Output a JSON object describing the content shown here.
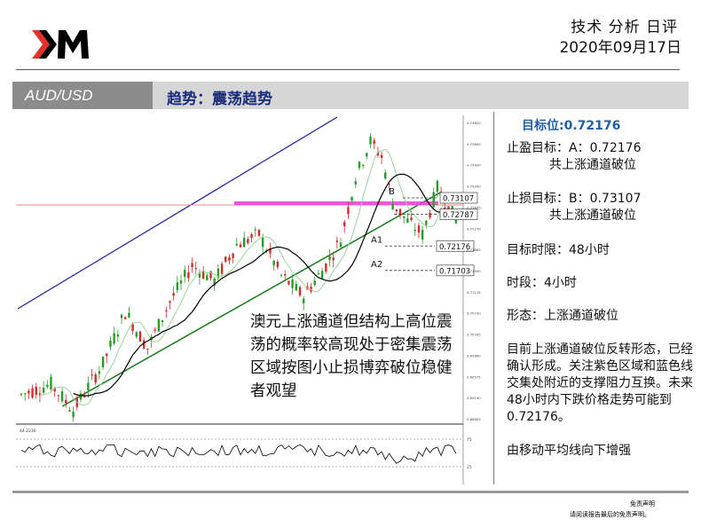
{
  "header": {
    "title": "技术 分析 日评",
    "date": "2020年09月17日",
    "brand_color": "#e4322b"
  },
  "band": {
    "pair": "AUD/USD",
    "trend_label": "趋势：震荡趋势"
  },
  "chart_data": {
    "type": "candlestick",
    "title": "",
    "xlabel": "",
    "ylabel": "",
    "ylim": [
      0.688,
      0.746
    ],
    "price_tick_labels": [
      "0.74620",
      "0.73805",
      "0.73420",
      "0.73040",
      "0.72655",
      "0.72270",
      "0.71885",
      "0.71500",
      "0.71115",
      "0.70730",
      "0.70345",
      "0.69960",
      "0.69575",
      "0.69190",
      "0.68805"
    ],
    "levels": [
      {
        "name": "B",
        "value": 0.73107
      },
      {
        "name": "",
        "value": 0.72787
      },
      {
        "name": "A1",
        "value": 0.72176
      },
      {
        "name": "A2",
        "value": 0.71703
      }
    ],
    "lines": {
      "upper_channel": {
        "color": "#1a1aa0"
      },
      "lower_channel": {
        "color": "#1a7a1a"
      },
      "support_zone": {
        "color": "#e040d0"
      },
      "horizontal_ref": {
        "color": "#ff8080"
      }
    },
    "indicator": {
      "label": "44.2230",
      "scale_top": "75",
      "scale_bottom": "25"
    },
    "annotation": "澳元上涨通道但结构上高位震荡的概率较高现处于密集震荡区域按图小止损博弈破位稳健者观望",
    "candle_colors": {
      "up": "#2a9a2a",
      "down": "#d42a2a"
    }
  },
  "right_panel": {
    "target_title": "目标位:0.72176",
    "take_profit_label": "止盈目标：A：0.72176",
    "take_profit_sub": "共上涨通道破位",
    "stop_loss_label": "止损目标：B：0.73107",
    "stop_loss_sub": "共上涨通道破位",
    "time_limit": "目标时限：48小时",
    "timeframe": "时段：4小时",
    "pattern": "形态：上涨通道破位",
    "analysis": "目前上涨通道破位反转形态，已经确认形成。关注紫色区域和蓝色线交集处附近的支撑阻力互换。未来48小时内下跌价格走势可能到0.72176。",
    "ma_note": "由移动平均线向下增强"
  },
  "footer": {
    "disclaimer_title": "免责声明",
    "disclaimer_note": "请阅读报告最后的免责声明。"
  }
}
